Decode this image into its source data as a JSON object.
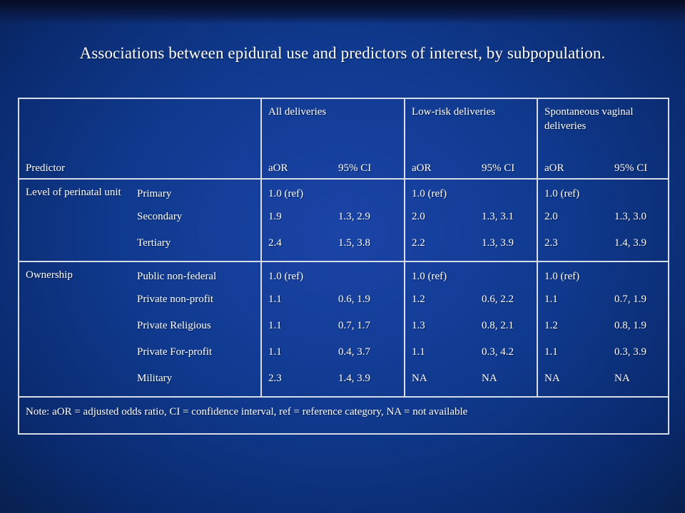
{
  "title": "Associations between epidural use and predictors of interest, by subpopulation.",
  "table": {
    "header": {
      "predictor": "Predictor",
      "groups": [
        "All deliveries",
        "Low-risk deliveries",
        "Spontaneous vaginal deliveries"
      ],
      "aor": "aOR",
      "ci": "95% CI"
    },
    "sections": [
      {
        "label": "Level of perinatal unit",
        "rows": [
          {
            "name": "Primary",
            "vals": [
              [
                "1.0 (ref)",
                ""
              ],
              [
                "1.0 (ref)",
                ""
              ],
              [
                "1.0 (ref)",
                ""
              ]
            ]
          },
          {
            "name": "Secondary",
            "vals": [
              [
                "1.9",
                "1.3, 2.9"
              ],
              [
                "2.0",
                "1.3, 3.1"
              ],
              [
                "2.0",
                "1.3, 3.0"
              ]
            ]
          },
          {
            "name": "Tertiary",
            "vals": [
              [
                "2.4",
                "1.5, 3.8"
              ],
              [
                "2.2",
                "1.3, 3.9"
              ],
              [
                "2.3",
                "1.4, 3.9"
              ]
            ]
          }
        ]
      },
      {
        "label": "Ownership",
        "rows": [
          {
            "name": "Public non-federal",
            "vals": [
              [
                "1.0 (ref)",
                ""
              ],
              [
                "1.0 (ref)",
                ""
              ],
              [
                "1.0 (ref)",
                ""
              ]
            ]
          },
          {
            "name": "Private non-profit",
            "vals": [
              [
                "1.1",
                "0.6, 1.9"
              ],
              [
                "1.2",
                "0.6, 2.2"
              ],
              [
                "1.1",
                "0.7, 1.9"
              ]
            ]
          },
          {
            "name": "Private Religious",
            "vals": [
              [
                "1.1",
                "0.7, 1.7"
              ],
              [
                "1.3",
                "0.8, 2.1"
              ],
              [
                "1.2",
                "0.8, 1.9"
              ]
            ]
          },
          {
            "name": "Private For-profit",
            "vals": [
              [
                "1.1",
                "0.4, 3.7"
              ],
              [
                "1.1",
                "0.3, 4.2"
              ],
              [
                "1.1",
                "0.3, 3.9"
              ]
            ]
          },
          {
            "name": "Military",
            "vals": [
              [
                "2.3",
                "1.4, 3.9"
              ],
              [
                "NA",
                "NA"
              ],
              [
                "NA",
                "NA"
              ]
            ]
          }
        ]
      }
    ],
    "note": "Note:  aOR = adjusted odds ratio, CI = confidence interval, ref = reference category, NA = not available"
  }
}
